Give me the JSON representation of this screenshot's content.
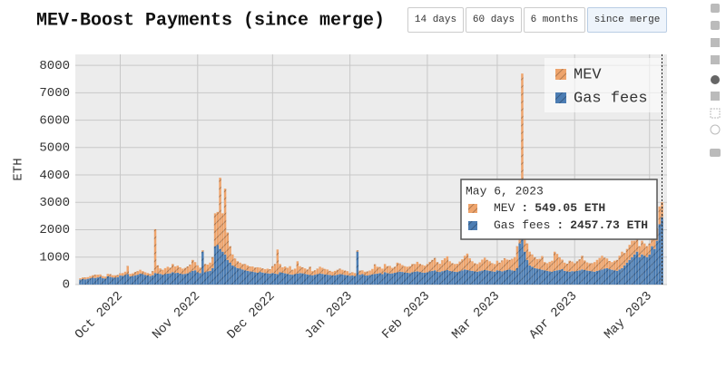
{
  "chart_data": {
    "type": "stacked-bar",
    "title": "MEV-Boost Payments (since merge)",
    "y_label": "ETH",
    "buttons": [
      "14 days",
      "60 days",
      "6 months",
      "since merge"
    ],
    "active_button": 3,
    "xlim": [
      "2022-09-13",
      "2023-05-08"
    ],
    "xticks": [
      {
        "value": "2022-10-01",
        "label": "Oct 2022"
      },
      {
        "value": "2022-11-01",
        "label": "Nov 2022"
      },
      {
        "value": "2022-12-01",
        "label": "Dec 2022"
      },
      {
        "value": "2023-01-01",
        "label": "Jan 2023"
      },
      {
        "value": "2023-02-01",
        "label": "Feb 2023"
      },
      {
        "value": "2023-03-01",
        "label": "Mar 2023"
      },
      {
        "value": "2023-04-01",
        "label": "Apr 2023"
      },
      {
        "value": "2023-05-01",
        "label": "May 2023"
      }
    ],
    "ylim": [
      0,
      8400
    ],
    "yticks": [
      0,
      1000,
      2000,
      3000,
      4000,
      5000,
      6000,
      7000,
      8000
    ],
    "grid": true,
    "legend": "top-right",
    "x": [
      "2022-09-15",
      "2022-09-16",
      "2022-09-17",
      "2022-09-18",
      "2022-09-19",
      "2022-09-20",
      "2022-09-21",
      "2022-09-22",
      "2022-09-23",
      "2022-09-24",
      "2022-09-25",
      "2022-09-26",
      "2022-09-27",
      "2022-09-28",
      "2022-09-29",
      "2022-09-30",
      "2022-10-01",
      "2022-10-02",
      "2022-10-03",
      "2022-10-04",
      "2022-10-05",
      "2022-10-06",
      "2022-10-07",
      "2022-10-08",
      "2022-10-09",
      "2022-10-10",
      "2022-10-11",
      "2022-10-12",
      "2022-10-13",
      "2022-10-14",
      "2022-10-15",
      "2022-10-16",
      "2022-10-17",
      "2022-10-18",
      "2022-10-19",
      "2022-10-20",
      "2022-10-21",
      "2022-10-22",
      "2022-10-23",
      "2022-10-24",
      "2022-10-25",
      "2022-10-26",
      "2022-10-27",
      "2022-10-28",
      "2022-10-29",
      "2022-10-30",
      "2022-10-31",
      "2022-11-01",
      "2022-11-02",
      "2022-11-03",
      "2022-11-04",
      "2022-11-05",
      "2022-11-06",
      "2022-11-07",
      "2022-11-08",
      "2022-11-09",
      "2022-11-10",
      "2022-11-11",
      "2022-11-12",
      "2022-11-13",
      "2022-11-14",
      "2022-11-15",
      "2022-11-16",
      "2022-11-17",
      "2022-11-18",
      "2022-11-19",
      "2022-11-20",
      "2022-11-21",
      "2022-11-22",
      "2022-11-23",
      "2022-11-24",
      "2022-11-25",
      "2022-11-26",
      "2022-11-27",
      "2022-11-28",
      "2022-11-29",
      "2022-11-30",
      "2022-12-01",
      "2022-12-02",
      "2022-12-03",
      "2022-12-04",
      "2022-12-05",
      "2022-12-06",
      "2022-12-07",
      "2022-12-08",
      "2022-12-09",
      "2022-12-10",
      "2022-12-11",
      "2022-12-12",
      "2022-12-13",
      "2022-12-14",
      "2022-12-15",
      "2022-12-16",
      "2022-12-17",
      "2022-12-18",
      "2022-12-19",
      "2022-12-20",
      "2022-12-21",
      "2022-12-22",
      "2022-12-23",
      "2022-12-24",
      "2022-12-25",
      "2022-12-26",
      "2022-12-27",
      "2022-12-28",
      "2022-12-29",
      "2022-12-30",
      "2022-12-31",
      "2023-01-01",
      "2023-01-02",
      "2023-01-03",
      "2023-01-04",
      "2023-01-05",
      "2023-01-06",
      "2023-01-07",
      "2023-01-08",
      "2023-01-09",
      "2023-01-10",
      "2023-01-11",
      "2023-01-12",
      "2023-01-13",
      "2023-01-14",
      "2023-01-15",
      "2023-01-16",
      "2023-01-17",
      "2023-01-18",
      "2023-01-19",
      "2023-01-20",
      "2023-01-21",
      "2023-01-22",
      "2023-01-23",
      "2023-01-24",
      "2023-01-25",
      "2023-01-26",
      "2023-01-27",
      "2023-01-28",
      "2023-01-29",
      "2023-01-30",
      "2023-01-31",
      "2023-02-01",
      "2023-02-02",
      "2023-02-03",
      "2023-02-04",
      "2023-02-05",
      "2023-02-06",
      "2023-02-07",
      "2023-02-08",
      "2023-02-09",
      "2023-02-10",
      "2023-02-11",
      "2023-02-12",
      "2023-02-13",
      "2023-02-14",
      "2023-02-15",
      "2023-02-16",
      "2023-02-17",
      "2023-02-18",
      "2023-02-19",
      "2023-02-20",
      "2023-02-21",
      "2023-02-22",
      "2023-02-23",
      "2023-02-24",
      "2023-02-25",
      "2023-02-26",
      "2023-02-27",
      "2023-02-28",
      "2023-03-01",
      "2023-03-02",
      "2023-03-03",
      "2023-03-04",
      "2023-03-05",
      "2023-03-06",
      "2023-03-07",
      "2023-03-08",
      "2023-03-09",
      "2023-03-10",
      "2023-03-11",
      "2023-03-12",
      "2023-03-13",
      "2023-03-14",
      "2023-03-15",
      "2023-03-16",
      "2023-03-17",
      "2023-03-18",
      "2023-03-19",
      "2023-03-20",
      "2023-03-21",
      "2023-03-22",
      "2023-03-23",
      "2023-03-24",
      "2023-03-25",
      "2023-03-26",
      "2023-03-27",
      "2023-03-28",
      "2023-03-29",
      "2023-03-30",
      "2023-03-31",
      "2023-04-01",
      "2023-04-02",
      "2023-04-03",
      "2023-04-04",
      "2023-04-05",
      "2023-04-06",
      "2023-04-07",
      "2023-04-08",
      "2023-04-09",
      "2023-04-10",
      "2023-04-11",
      "2023-04-12",
      "2023-04-13",
      "2023-04-14",
      "2023-04-15",
      "2023-04-16",
      "2023-04-17",
      "2023-04-18",
      "2023-04-19",
      "2023-04-20",
      "2023-04-21",
      "2023-04-22",
      "2023-04-23",
      "2023-04-24",
      "2023-04-25",
      "2023-04-26",
      "2023-04-27",
      "2023-04-28",
      "2023-04-29",
      "2023-04-30",
      "2023-05-01",
      "2023-05-02",
      "2023-05-03",
      "2023-05-04",
      "2023-05-05",
      "2023-05-06"
    ],
    "series": [
      {
        "name": "MEV",
        "color": "#eea46c",
        "values": [
          50,
          60,
          70,
          60,
          80,
          90,
          120,
          100,
          90,
          80,
          70,
          90,
          100,
          80,
          90,
          80,
          80,
          100,
          120,
          300,
          90,
          100,
          120,
          130,
          140,
          110,
          100,
          90,
          80,
          150,
          1600,
          300,
          200,
          180,
          220,
          250,
          210,
          300,
          240,
          260,
          230,
          200,
          220,
          250,
          280,
          400,
          300,
          250,
          200,
          50,
          300,
          250,
          300,
          400,
          1200,
          1200,
          2600,
          1400,
          2400,
          1000,
          600,
          400,
          300,
          250,
          220,
          200,
          230,
          200,
          180,
          190,
          170,
          200,
          160,
          150,
          140,
          170,
          160,
          250,
          350,
          900,
          300,
          200,
          250,
          220,
          300,
          180,
          200,
          450,
          250,
          220,
          200,
          180,
          300,
          150,
          160,
          200,
          250,
          220,
          200,
          190,
          150,
          140,
          160,
          180,
          200,
          170,
          160,
          150,
          100,
          120,
          110,
          50,
          150,
          140,
          130,
          150,
          160,
          200,
          350,
          250,
          220,
          200,
          300,
          250,
          280,
          200,
          220,
          350,
          300,
          250,
          230,
          220,
          250,
          300,
          280,
          350,
          300,
          280,
          260,
          300,
          350,
          400,
          450,
          350,
          300,
          400,
          450,
          500,
          350,
          300,
          280,
          300,
          350,
          400,
          500,
          600,
          450,
          350,
          300,
          280,
          320,
          400,
          450,
          380,
          350,
          300,
          280,
          350,
          300,
          400,
          450,
          380,
          350,
          420,
          500,
          800,
          1500,
          5900,
          1300,
          600,
          500,
          450,
          400,
          350,
          380,
          500,
          300,
          280,
          350,
          400,
          700,
          600,
          450,
          350,
          300,
          280,
          400,
          350,
          300,
          350,
          400,
          500,
          350,
          300,
          280,
          300,
          350,
          400,
          450,
          500,
          400,
          350,
          300,
          280,
          350,
          400,
          500,
          600,
          450,
          500,
          550,
          600,
          500,
          450,
          400,
          500,
          450,
          400,
          400,
          300,
          500,
          450,
          650,
          549.05
        ]
      },
      {
        "name": "Gas fees",
        "color": "#4c7db3",
        "values": [
          180,
          200,
          190,
          210,
          230,
          250,
          240,
          260,
          280,
          230,
          220,
          300,
          280,
          260,
          250,
          270,
          330,
          320,
          350,
          380,
          300,
          310,
          340,
          360,
          400,
          380,
          350,
          330,
          310,
          340,
          420,
          400,
          390,
          360,
          380,
          400,
          410,
          450,
          420,
          430,
          400,
          380,
          390,
          410,
          450,
          500,
          520,
          450,
          420,
          1200,
          450,
          480,
          500,
          600,
          1400,
          1450,
          1300,
          1200,
          1100,
          900,
          800,
          700,
          650,
          600,
          580,
          550,
          520,
          500,
          480,
          470,
          450,
          430,
          460,
          440,
          420,
          410,
          400,
          420,
          400,
          380,
          450,
          430,
          410,
          390,
          370,
          360,
          380,
          400,
          420,
          410,
          390,
          370,
          350,
          340,
          360,
          380,
          400,
          390,
          370,
          360,
          350,
          330,
          340,
          360,
          380,
          370,
          350,
          340,
          320,
          330,
          310,
          1200,
          360,
          380,
          340,
          330,
          350,
          370,
          390,
          400,
          420,
          380,
          450,
          420,
          400,
          410,
          430,
          450,
          470,
          460,
          440,
          430,
          420,
          450,
          470,
          480,
          460,
          440,
          430,
          450,
          480,
          500,
          520,
          470,
          460,
          490,
          510,
          530,
          500,
          480,
          470,
          460,
          490,
          520,
          550,
          530,
          510,
          500,
          480,
          470,
          490,
          510,
          530,
          520,
          500,
          480,
          470,
          520,
          500,
          480,
          510,
          530,
          550,
          520,
          500,
          600,
          1500,
          1800,
          1200,
          900,
          700,
          650,
          600,
          580,
          560,
          540,
          520,
          500,
          480,
          470,
          500,
          520,
          540,
          560,
          500,
          480,
          470,
          490,
          480,
          500,
          520,
          550,
          530,
          510,
          500,
          480,
          470,
          500,
          520,
          550,
          580,
          600,
          560,
          540,
          520,
          500,
          550,
          600,
          700,
          800,
          900,
          1000,
          1100,
          1200,
          1000,
          1100,
          1050,
          1000,
          1100,
          1400,
          1300,
          1600,
          2200,
          2457.73
        ]
      }
    ],
    "tooltip": {
      "date": "May 6, 2023",
      "separator": ":",
      "labels": [
        "549.05 ETH",
        "2457.73 ETH"
      ]
    }
  }
}
